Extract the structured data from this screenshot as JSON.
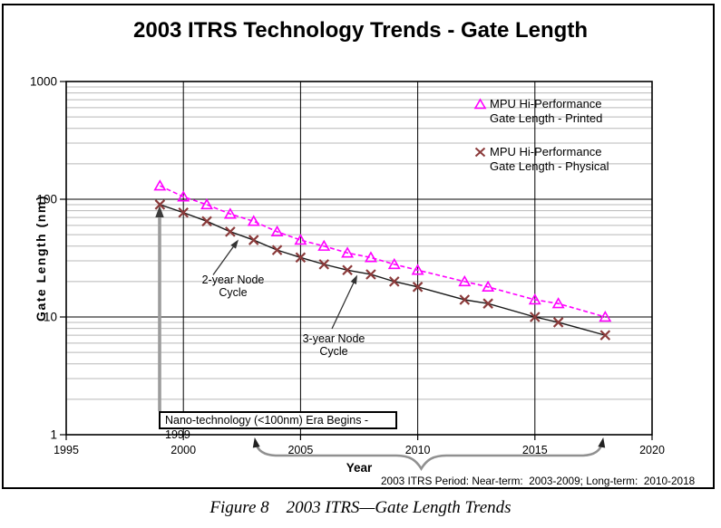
{
  "figure": {
    "title": "2003 ITRS Technology Trends - Gate Length",
    "caption": "Figure 8    2003 ITRS—Gate Length Trends"
  },
  "chart_data": {
    "type": "line",
    "title": "2003 ITRS Technology Trends - Gate Length",
    "xlabel": "Year",
    "ylabel": "Gate Length (nm)",
    "y_scale": "log",
    "xlim": [
      1995,
      2020
    ],
    "ylim": [
      1,
      1000
    ],
    "x_ticks": [
      1995,
      2000,
      2005,
      2010,
      2015,
      2020
    ],
    "y_ticks": [
      1000,
      100,
      10,
      1
    ],
    "grid": {
      "vertical_years": [
        2000,
        2005,
        2010,
        2015
      ],
      "major_horizontal": [
        100,
        10
      ],
      "minor_horizontal": "gray log lines at 2-9 of each decade"
    },
    "legend_position": "upper right inside plot",
    "series": [
      {
        "name": "MPU Hi-Performance Gate Length - Printed",
        "legend_lines": [
          "MPU Hi-Performance",
          "Gate Length - Printed"
        ],
        "marker": "open-triangle",
        "color": "#FF00FF",
        "line_style": "dashed",
        "x": [
          1999,
          2000,
          2001,
          2002,
          2003,
          2004,
          2005,
          2006,
          2007,
          2008,
          2009,
          2010,
          2012,
          2013,
          2015,
          2016,
          2018
        ],
        "y": [
          130,
          105,
          90,
          75,
          65,
          53,
          45,
          40,
          35,
          32,
          28,
          25,
          20,
          18,
          14,
          13,
          10
        ]
      },
      {
        "name": "MPU Hi-Performance Gate Length - Physical",
        "legend_lines": [
          "MPU Hi-Performance",
          "Gate Length - Physical"
        ],
        "marker": "x",
        "color": "#8B3A3A",
        "line_color": "#1a1a1a",
        "line_style": "solid",
        "x": [
          1999,
          2000,
          2001,
          2002,
          2003,
          2004,
          2005,
          2006,
          2007,
          2008,
          2009,
          2010,
          2012,
          2013,
          2015,
          2016,
          2018
        ],
        "y": [
          90,
          77,
          65,
          53,
          45,
          37,
          32,
          28,
          25,
          23,
          20,
          18,
          14,
          13,
          10,
          9,
          7
        ]
      }
    ],
    "annotations": [
      {
        "id": "two-year-node-cycle",
        "lines": [
          "2-year Node",
          "Cycle"
        ],
        "points_to": "physical gate length curve near 2002"
      },
      {
        "id": "three-year-node-cycle",
        "lines": [
          "3-year Node",
          "Cycle"
        ],
        "points_to": "physical gate length curve near 2007"
      },
      {
        "id": "nano-era",
        "lines": [
          "Nano-technology (<100nm) Era Begins - 1999"
        ],
        "points_to": "1999 physical gate length point"
      },
      {
        "id": "itrs-period",
        "lines": [
          "2003 ITRS Period: Near-term:  2003-2009; Long-term:  2010-2018"
        ],
        "brace_span_years": [
          2003,
          2018
        ]
      }
    ]
  }
}
